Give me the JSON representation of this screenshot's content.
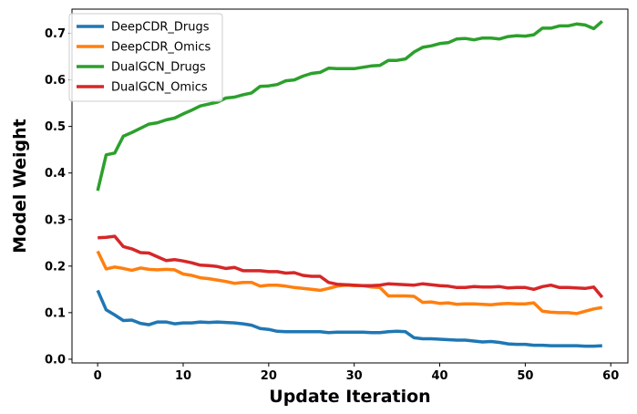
{
  "chart_data": {
    "type": "line",
    "title": "",
    "xlabel": "Update Iteration",
    "ylabel": "Model Weight",
    "xlim": [
      -3,
      62
    ],
    "ylim": [
      -0.008,
      0.752
    ],
    "xticks": [
      0,
      10,
      20,
      30,
      40,
      50,
      60
    ],
    "yticks": [
      0.0,
      0.1,
      0.2,
      0.3,
      0.4,
      0.5,
      0.6,
      0.7
    ],
    "ytick_labels": [
      "0.0",
      "0.1",
      "0.2",
      "0.3",
      "0.4",
      "0.5",
      "0.6",
      "0.7"
    ],
    "legend_position": "upper-left",
    "grid": false,
    "x": [
      0,
      1,
      2,
      3,
      4,
      5,
      6,
      7,
      8,
      9,
      10,
      11,
      12,
      13,
      14,
      15,
      16,
      17,
      18,
      19,
      20,
      21,
      22,
      23,
      24,
      25,
      26,
      27,
      28,
      29,
      30,
      31,
      32,
      33,
      34,
      35,
      36,
      37,
      38,
      39,
      40,
      41,
      42,
      43,
      44,
      45,
      46,
      47,
      48,
      49,
      50,
      51,
      52,
      53,
      54,
      55,
      56,
      57,
      58,
      59
    ],
    "series": [
      {
        "name": "DeepCDR_Drugs",
        "color": "#1f77b4",
        "values": [
          0.148,
          0.106,
          0.095,
          0.083,
          0.084,
          0.077,
          0.074,
          0.08,
          0.08,
          0.076,
          0.078,
          0.078,
          0.08,
          0.079,
          0.08,
          0.079,
          0.078,
          0.076,
          0.073,
          0.066,
          0.064,
          0.06,
          0.059,
          0.059,
          0.059,
          0.059,
          0.059,
          0.057,
          0.058,
          0.058,
          0.058,
          0.058,
          0.057,
          0.057,
          0.059,
          0.06,
          0.059,
          0.046,
          0.044,
          0.044,
          0.043,
          0.042,
          0.041,
          0.041,
          0.039,
          0.037,
          0.038,
          0.036,
          0.033,
          0.032,
          0.032,
          0.03,
          0.03,
          0.029,
          0.029,
          0.029,
          0.029,
          0.028,
          0.028,
          0.029
        ]
      },
      {
        "name": "DeepCDR_Omics",
        "color": "#ff7f0e",
        "values": [
          0.232,
          0.194,
          0.198,
          0.195,
          0.191,
          0.196,
          0.193,
          0.192,
          0.193,
          0.192,
          0.183,
          0.18,
          0.175,
          0.173,
          0.17,
          0.167,
          0.163,
          0.165,
          0.165,
          0.157,
          0.159,
          0.159,
          0.157,
          0.154,
          0.152,
          0.15,
          0.148,
          0.152,
          0.157,
          0.159,
          0.158,
          0.158,
          0.155,
          0.154,
          0.136,
          0.136,
          0.136,
          0.135,
          0.122,
          0.123,
          0.12,
          0.121,
          0.118,
          0.119,
          0.119,
          0.118,
          0.117,
          0.119,
          0.12,
          0.119,
          0.119,
          0.121,
          0.103,
          0.101,
          0.1,
          0.1,
          0.098,
          0.103,
          0.108,
          0.111
        ]
      },
      {
        "name": "DualGCN_Drugs",
        "color": "#2ca02c",
        "values": [
          0.362,
          0.439,
          0.443,
          0.479,
          0.487,
          0.496,
          0.505,
          0.508,
          0.514,
          0.518,
          0.527,
          0.535,
          0.544,
          0.548,
          0.552,
          0.561,
          0.563,
          0.568,
          0.572,
          0.586,
          0.587,
          0.59,
          0.598,
          0.6,
          0.608,
          0.614,
          0.616,
          0.625,
          0.624,
          0.624,
          0.624,
          0.627,
          0.63,
          0.631,
          0.642,
          0.642,
          0.645,
          0.66,
          0.67,
          0.673,
          0.678,
          0.68,
          0.688,
          0.689,
          0.686,
          0.69,
          0.69,
          0.688,
          0.693,
          0.695,
          0.694,
          0.697,
          0.711,
          0.711,
          0.716,
          0.716,
          0.72,
          0.718,
          0.71,
          0.726
        ]
      },
      {
        "name": "DualGCN_Omics",
        "color": "#d62728",
        "values": [
          0.261,
          0.262,
          0.264,
          0.242,
          0.237,
          0.229,
          0.228,
          0.22,
          0.212,
          0.214,
          0.211,
          0.207,
          0.202,
          0.201,
          0.199,
          0.195,
          0.197,
          0.19,
          0.19,
          0.19,
          0.188,
          0.188,
          0.185,
          0.186,
          0.18,
          0.178,
          0.178,
          0.165,
          0.161,
          0.16,
          0.159,
          0.158,
          0.158,
          0.159,
          0.162,
          0.161,
          0.16,
          0.159,
          0.162,
          0.16,
          0.158,
          0.157,
          0.154,
          0.154,
          0.156,
          0.155,
          0.155,
          0.156,
          0.153,
          0.154,
          0.154,
          0.15,
          0.156,
          0.159,
          0.154,
          0.154,
          0.153,
          0.152,
          0.155,
          0.133
        ]
      }
    ]
  }
}
